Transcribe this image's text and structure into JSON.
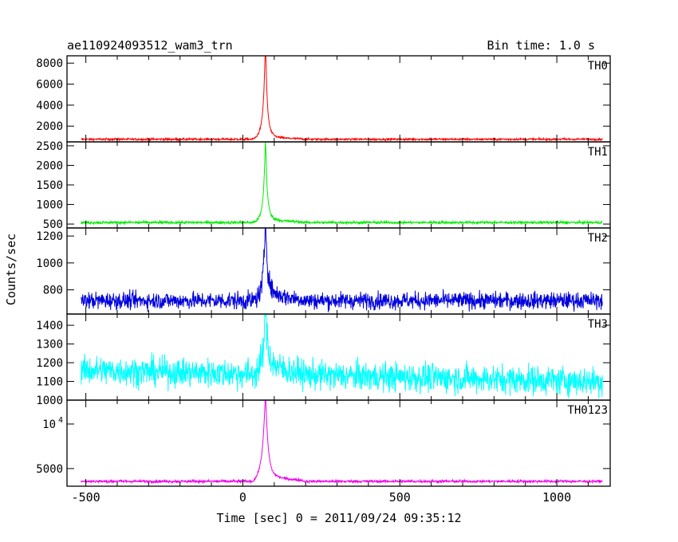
{
  "chart_data": {
    "type": "line",
    "title_left": "ae110924093512_wam3_trn",
    "title_right": "Bin time: 1.0 s",
    "xlabel": "Time [sec] 0 = 2011/09/24 09:35:12",
    "ylabel": "Counts/sec",
    "xlim": [
      -560,
      1170
    ],
    "x_ticks": [
      -500,
      0,
      500,
      1000
    ],
    "x_data_range": [
      -515,
      1145
    ],
    "peak_time": 72,
    "panels": [
      {
        "name": "TH0",
        "color": "#ff0000",
        "ylim": [
          500,
          8700
        ],
        "log": false,
        "ticks": [
          {
            "v": 2000,
            "label": "2000"
          },
          {
            "v": 4000,
            "label": "4000"
          },
          {
            "v": 6000,
            "label": "6000"
          },
          {
            "v": 8000,
            "label": "8000"
          }
        ],
        "baseline": 750,
        "noise": 70,
        "peak": 8900,
        "shoulder": 2700,
        "tail": 1050
      },
      {
        "name": "TH1",
        "color": "#00ee00",
        "ylim": [
          400,
          2600
        ],
        "log": false,
        "ticks": [
          {
            "v": 500,
            "label": "500"
          },
          {
            "v": 1000,
            "label": "1000"
          },
          {
            "v": 1500,
            "label": "1500"
          },
          {
            "v": 2000,
            "label": "2000"
          },
          {
            "v": 2500,
            "label": "2500"
          }
        ],
        "baseline": 540,
        "noise": 25,
        "peak": 2450,
        "shoulder": 900,
        "tail": 650
      },
      {
        "name": "TH2",
        "color": "#0000dd",
        "ylim": [
          620,
          1260
        ],
        "log": false,
        "ticks": [
          {
            "v": 800,
            "label": "800"
          },
          {
            "v": 1000,
            "label": "1000"
          },
          {
            "v": 1200,
            "label": "1200"
          }
        ],
        "baseline": 720,
        "noise": 45,
        "peak": 1230,
        "shoulder": 850,
        "tail": 800
      },
      {
        "name": "TH3",
        "color": "#00ffff",
        "ylim": [
          1000,
          1460
        ],
        "log": false,
        "ticks": [
          {
            "v": 1000,
            "label": "1000"
          },
          {
            "v": 1100,
            "label": "1100"
          },
          {
            "v": 1200,
            "label": "1200"
          },
          {
            "v": 1300,
            "label": "1300"
          },
          {
            "v": 1400,
            "label": "1400"
          }
        ],
        "baseline": 1160,
        "noise": 55,
        "peak": 1430,
        "shoulder": 1260,
        "tail": 1230,
        "trend": -60
      },
      {
        "name": "TH0123",
        "color": "#ee00ee",
        "ylim": [
          3800,
          14500
        ],
        "log": true,
        "ticks": [
          {
            "v": 10000,
            "label": "10",
            "sup": "4"
          },
          {
            "v": 5000,
            "label": "5000"
          }
        ],
        "baseline": 4100,
        "noise": 60,
        "peak": 14000,
        "shoulder": 6400,
        "tail": 4600
      }
    ]
  }
}
